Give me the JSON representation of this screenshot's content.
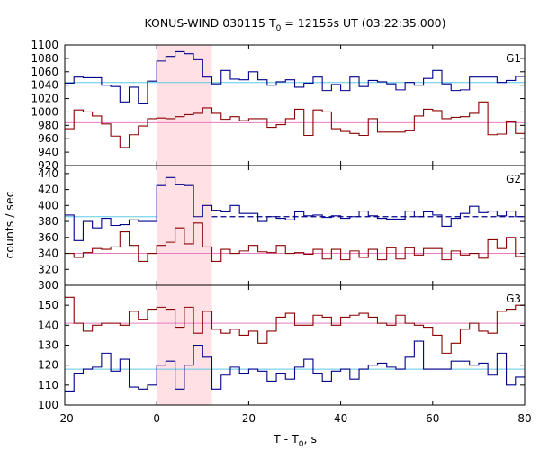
{
  "title": {
    "text": "KONUS-WIND 030115 T",
    "sub": "0",
    "rest": " = 12155s UT (03:22:35.000)"
  },
  "xlabel": {
    "text": "T - T",
    "sub": "0",
    "rest": ", s"
  },
  "ylabel": "counts / sec",
  "colors": {
    "red_series": "#8b0000",
    "blue_series": "#00008b",
    "red_background": "#e87bc2",
    "blue_background": "#5fc8e8",
    "highlight": "#ffe0e4"
  },
  "chart_data": {
    "type": "line",
    "style": "step",
    "x_range": [
      -20,
      80
    ],
    "x_ticks": [
      -20,
      0,
      20,
      40,
      60,
      80
    ],
    "x_tick_labels": [
      "-20",
      "0",
      "20",
      "40",
      "60",
      "80"
    ],
    "highlight_interval": [
      0,
      12
    ],
    "bin_edges": [
      -20,
      -18,
      -16,
      -14,
      -12,
      -10,
      -8,
      -6,
      -4,
      -2,
      0,
      2,
      4,
      6,
      8,
      10,
      12,
      14,
      16,
      18,
      20,
      22,
      24,
      26,
      28,
      30,
      32,
      34,
      36,
      38,
      40,
      42,
      44,
      46,
      48,
      50,
      52,
      54,
      56,
      58,
      60,
      62,
      64,
      66,
      68,
      70,
      72,
      74,
      76,
      78,
      80
    ],
    "panels": [
      {
        "label": "G1",
        "ylim": [
          920,
          1100
        ],
        "y_ticks": [
          920,
          940,
          960,
          980,
          1000,
          1020,
          1040,
          1060,
          1080,
          1100
        ],
        "y_tick_labels": [
          "920",
          "940",
          "960",
          "980",
          "1000",
          "1020",
          "1040",
          "1060",
          "1080",
          "1100"
        ],
        "series": [
          {
            "color_key": "blue_series",
            "values": [
              1043,
              1052,
              1051,
              1051,
              1040,
              1038,
              1015,
              1037,
              1012,
              1046,
              1076,
              1083,
              1090,
              1087,
              1078,
              1052,
              1042,
              1062,
              1049,
              1048,
              1060,
              1048,
              1040,
              1045,
              1048,
              1037,
              1043,
              1052,
              1032,
              1041,
              1032,
              1052,
              1038,
              1047,
              1045,
              1042,
              1033,
              1044,
              1040,
              1050,
              1062,
              1042,
              1032,
              1033,
              1052,
              1052,
              1052,
              1044,
              1047,
              1053
            ]
          },
          {
            "color_key": "red_series",
            "values": [
              975,
              1003,
              1000,
              994,
              982,
              964,
              947,
              966,
              979,
              990,
              991,
              990,
              993,
              996,
              998,
              1006,
              998,
              989,
              993,
              987,
              990,
              990,
              977,
              981,
              990,
              1004,
              965,
              1003,
              1000,
              975,
              971,
              968,
              965,
              990,
              970,
              970,
              970,
              972,
              994,
              1004,
              1002,
              990,
              992,
              993,
              998,
              1015,
              966,
              967,
              985,
              968
            ]
          }
        ],
        "background_levels": [
          {
            "color_key": "blue_background",
            "value": 1044
          },
          {
            "color_key": "red_background",
            "value": 984
          }
        ]
      },
      {
        "label": "G2",
        "ylim": [
          300,
          450
        ],
        "y_ticks": [
          300,
          320,
          340,
          360,
          380,
          400,
          420,
          440
        ],
        "y_tick_labels": [
          "300",
          "320",
          "340",
          "360",
          "380",
          "400",
          "420",
          "440"
        ],
        "series": [
          {
            "color_key": "blue_series",
            "values": [
              388,
              356,
              380,
              372,
              384,
              375,
              376,
              382,
              380,
              380,
              425,
              435,
              426,
              425,
              386,
              400,
              394,
              392,
              400,
              390,
              390,
              380,
              386,
              384,
              382,
              392,
              387,
              388,
              385,
              387,
              384,
              386,
              393,
              387,
              384,
              383,
              383,
              393,
              386,
              392,
              388,
              374,
              384,
              390,
              399,
              391,
              393,
              387,
              393,
              386
            ]
          },
          {
            "color_key": "red_series",
            "values": [
              340,
              335,
              341,
              346,
              345,
              348,
              367,
              350,
              330,
              340,
              350,
              354,
              372,
              352,
              378,
              348,
              330,
              345,
              340,
              343,
              350,
              342,
              341,
              350,
              340,
              341,
              339,
              345,
              333,
              345,
              332,
              343,
              335,
              345,
              332,
              347,
              333,
              347,
              338,
              346,
              346,
              332,
              343,
              338,
              340,
              334,
              357,
              346,
              360,
              336
            ]
          }
        ],
        "background_levels": [
          {
            "color_key": "blue_background",
            "value": 386,
            "x_range": [
              -20,
              0
            ]
          },
          {
            "color_key": "blue_series",
            "value": 386,
            "dashed": true,
            "x_range": [
              12,
              80
            ]
          },
          {
            "color_key": "red_background",
            "value": 340
          }
        ]
      },
      {
        "label": "G3",
        "ylim": [
          100,
          160
        ],
        "y_ticks": [
          100,
          110,
          120,
          130,
          140,
          150
        ],
        "y_tick_labels": [
          "100",
          "110",
          "120",
          "130",
          "140",
          "150"
        ],
        "series": [
          {
            "color_key": "blue_series",
            "values": [
              107,
              116,
              118,
              119,
              126,
              117,
              123,
              109,
              108,
              110,
              120,
              122,
              108,
              120,
              130,
              124,
              108,
              115,
              119,
              116,
              118,
              117,
              112,
              116,
              113,
              119,
              123,
              116,
              112,
              117,
              118,
              113,
              118,
              120,
              121,
              119,
              118,
              124,
              132,
              118,
              118,
              118,
              122,
              122,
              120,
              121,
              115,
              126,
              110,
              114
            ]
          },
          {
            "color_key": "red_series",
            "values": [
              154,
              141,
              137,
              140,
              141,
              141,
              140,
              147,
              143,
              148,
              149,
              148,
              139,
              149,
              136,
              147,
              138,
              136,
              138,
              135,
              137,
              131,
              137,
              144,
              146,
              140,
              140,
              145,
              144,
              140,
              144,
              145,
              146,
              144,
              141,
              140,
              145,
              141,
              140,
              139,
              135,
              126,
              131,
              138,
              141,
              137,
              136,
              147,
              148,
              150
            ]
          }
        ],
        "background_levels": [
          {
            "color_key": "blue_background",
            "value": 118
          },
          {
            "color_key": "red_background",
            "value": 141
          }
        ]
      }
    ]
  }
}
